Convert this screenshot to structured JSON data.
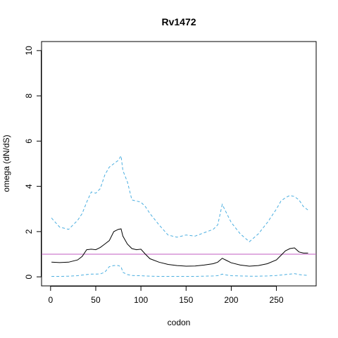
{
  "chart_data": {
    "type": "line",
    "title": "Rv1472",
    "xlabel": "codon",
    "ylabel": "omega (dN/dS)",
    "xlim": [
      -10,
      294
    ],
    "ylim": [
      -0.4,
      10.4
    ],
    "xticks": [
      0,
      50,
      100,
      150,
      200,
      250
    ],
    "yticks": [
      0,
      2,
      4,
      6,
      8,
      10
    ],
    "grid": false,
    "reference_line": {
      "y": 1,
      "color": "#c05ec0"
    },
    "colors": {
      "mean": "#000000",
      "bounds": "#4aaee0"
    },
    "x": [
      1,
      10,
      20,
      30,
      35,
      40,
      45,
      50,
      55,
      60,
      65,
      70,
      75,
      78,
      80,
      85,
      90,
      95,
      100,
      105,
      110,
      120,
      130,
      140,
      150,
      160,
      170,
      180,
      185,
      190,
      195,
      200,
      210,
      220,
      230,
      240,
      250,
      255,
      260,
      265,
      270,
      275,
      280,
      285
    ],
    "series": [
      {
        "style": "solid",
        "color": "#000000",
        "values": [
          0.65,
          0.63,
          0.65,
          0.75,
          0.9,
          1.2,
          1.22,
          1.2,
          1.3,
          1.45,
          1.6,
          2.0,
          2.1,
          2.12,
          1.8,
          1.45,
          1.25,
          1.2,
          1.22,
          1.0,
          0.8,
          0.65,
          0.55,
          0.5,
          0.47,
          0.48,
          0.52,
          0.58,
          0.65,
          0.82,
          0.72,
          0.62,
          0.52,
          0.47,
          0.5,
          0.58,
          0.75,
          0.95,
          1.15,
          1.25,
          1.28,
          1.1,
          1.05,
          1.05
        ]
      },
      {
        "style": "dashed",
        "color": "#4aaee0",
        "values": [
          2.6,
          2.2,
          2.1,
          2.5,
          2.8,
          3.3,
          3.75,
          3.7,
          3.9,
          4.5,
          4.85,
          5.0,
          5.15,
          5.35,
          4.7,
          4.2,
          3.4,
          3.35,
          3.3,
          3.1,
          2.8,
          2.3,
          1.85,
          1.75,
          1.85,
          1.8,
          1.95,
          2.1,
          2.3,
          3.2,
          2.8,
          2.4,
          1.9,
          1.55,
          1.9,
          2.4,
          3.0,
          3.35,
          3.5,
          3.6,
          3.55,
          3.4,
          3.1,
          2.95
        ]
      },
      {
        "style": "dashed",
        "color": "#4aaee0",
        "values": [
          0.02,
          0.02,
          0.03,
          0.05,
          0.08,
          0.1,
          0.12,
          0.12,
          0.13,
          0.2,
          0.45,
          0.5,
          0.5,
          0.45,
          0.2,
          0.1,
          0.06,
          0.05,
          0.05,
          0.04,
          0.03,
          0.02,
          0.02,
          0.02,
          0.02,
          0.02,
          0.03,
          0.04,
          0.05,
          0.12,
          0.08,
          0.05,
          0.04,
          0.03,
          0.03,
          0.04,
          0.06,
          0.08,
          0.1,
          0.12,
          0.14,
          0.1,
          0.08,
          0.06
        ]
      }
    ]
  }
}
